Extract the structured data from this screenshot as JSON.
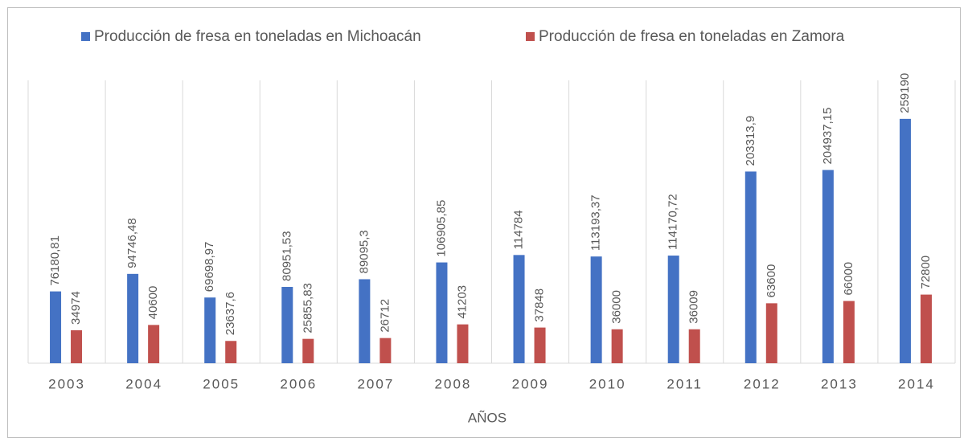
{
  "chart_data": {
    "type": "bar",
    "categories": [
      "2003",
      "2004",
      "2005",
      "2006",
      "2007",
      "2008",
      "2009",
      "2010",
      "2011",
      "2012",
      "2013",
      "2014"
    ],
    "series": [
      {
        "name": "Producción de fresa en toneladas en Michoacán",
        "color": "#4472c4",
        "values": [
          76180.81,
          94746.48,
          69698.97,
          80951.53,
          89095.3,
          106905.85,
          114784,
          113193.37,
          114170.72,
          203313.9,
          204937.15,
          259190
        ],
        "value_labels": [
          "76180,81",
          "94746,48",
          "69698,97",
          "80951,53",
          "89095,3",
          "106905,85",
          "114784",
          "113193,37",
          "114170,72",
          "203313,9",
          "204937,15",
          "259190"
        ]
      },
      {
        "name": "Producción de fresa en toneladas en Zamora",
        "color": "#c0504d",
        "values": [
          34974,
          40600,
          23637.6,
          25855.83,
          26712,
          41203,
          37848,
          36000,
          36009,
          63600,
          66000,
          72800
        ],
        "value_labels": [
          "34974",
          "40600",
          "23637,6",
          "25855,83",
          "26712",
          "41203",
          "37848",
          "36000",
          "36009",
          "63600",
          "66000",
          "72800"
        ]
      }
    ],
    "x_label": "AÑOS",
    "ylim": [
      0,
      300000
    ],
    "legend": "top"
  }
}
